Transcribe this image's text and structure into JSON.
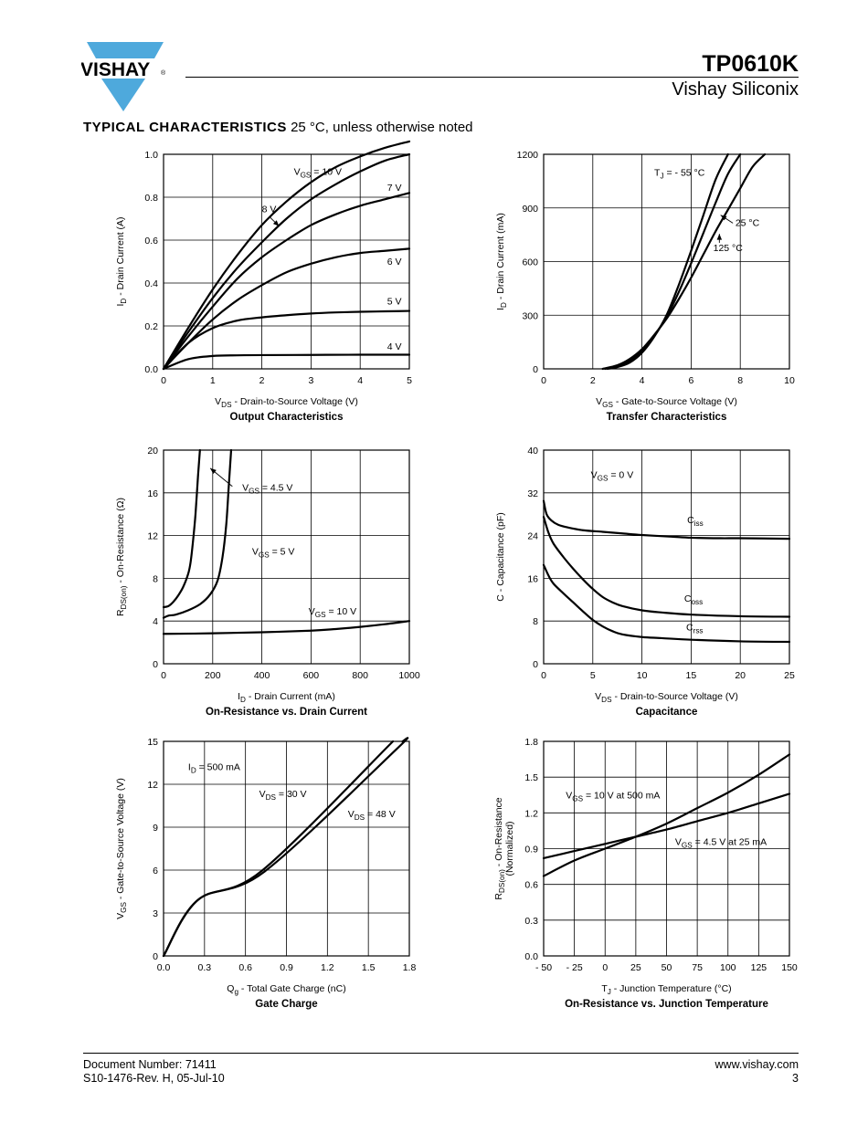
{
  "header": {
    "brand": "VISHAY",
    "registered": "®",
    "part_number": "TP0610K",
    "company": "Vishay Siliconix",
    "brand_color": "#4ea9dc"
  },
  "section": {
    "title": "TYPICAL CHARACTERISTICS",
    "condition": "25 °C, unless otherwise noted"
  },
  "chart_data": [
    {
      "type": "line",
      "title": "Output Characteristics",
      "xlabel": {
        "main": "V",
        "sub": "DS",
        "rest": " - Drain-to-Source Voltage (V)"
      },
      "ylabel": {
        "main": "I",
        "sub": "D",
        "rest": " - Drain Current (A)"
      },
      "xlim": [
        0,
        5
      ],
      "ylim": [
        0,
        1.0
      ],
      "xticks": [
        "0",
        "1",
        "2",
        "3",
        "4",
        "5"
      ],
      "yticks": [
        "0.0",
        "0.2",
        "0.4",
        "0.6",
        "0.8",
        "1.0"
      ],
      "grid": true,
      "series": [
        {
          "name": "VGS = 10 V",
          "x": [
            0,
            0.5,
            1,
            1.5,
            2,
            2.5,
            3,
            3.5,
            4,
            4.5,
            5
          ],
          "y": [
            0,
            0.19,
            0.37,
            0.53,
            0.67,
            0.78,
            0.87,
            0.94,
            0.99,
            1.03,
            1.06
          ]
        },
        {
          "name": "8 V",
          "x": [
            0,
            0.5,
            1,
            1.5,
            2,
            2.5,
            3,
            3.5,
            4,
            4.5,
            5
          ],
          "y": [
            0,
            0.17,
            0.33,
            0.47,
            0.59,
            0.7,
            0.79,
            0.86,
            0.92,
            0.97,
            1.0
          ]
        },
        {
          "name": "7 V",
          "x": [
            0,
            0.5,
            1,
            1.5,
            2,
            2.5,
            3,
            3.5,
            4,
            4.5,
            5
          ],
          "y": [
            0,
            0.15,
            0.29,
            0.42,
            0.52,
            0.6,
            0.67,
            0.72,
            0.76,
            0.79,
            0.82
          ]
        },
        {
          "name": "6 V",
          "x": [
            0,
            0.5,
            1,
            1.5,
            2,
            2.5,
            3,
            3.5,
            4,
            4.5,
            5
          ],
          "y": [
            0,
            0.12,
            0.23,
            0.32,
            0.39,
            0.45,
            0.49,
            0.52,
            0.54,
            0.55,
            0.56
          ]
        },
        {
          "name": "5 V",
          "x": [
            0,
            0.5,
            1,
            1.5,
            2,
            2.5,
            3,
            3.5,
            4,
            4.5,
            5
          ],
          "y": [
            0,
            0.12,
            0.19,
            0.225,
            0.24,
            0.25,
            0.258,
            0.263,
            0.266,
            0.268,
            0.27
          ]
        },
        {
          "name": "4 V",
          "x": [
            0,
            0.5,
            1,
            1.5,
            2,
            3,
            4,
            5
          ],
          "y": [
            0,
            0.045,
            0.06,
            0.063,
            0.064,
            0.065,
            0.066,
            0.066
          ]
        }
      ],
      "annotations": [
        {
          "type": "label",
          "sym": "V",
          "sub": "GS",
          "rest": " = 10 V",
          "x": 2.65,
          "y": 0.905
        },
        {
          "type": "label",
          "text": "8 V",
          "x": 2.0,
          "y": 0.73
        },
        {
          "type": "label",
          "text": "7 V",
          "x": 4.55,
          "y": 0.83
        },
        {
          "type": "label",
          "text": "6 V",
          "x": 4.55,
          "y": 0.485
        },
        {
          "type": "label",
          "text": "5 V",
          "x": 4.55,
          "y": 0.3
        },
        {
          "type": "label",
          "text": "4 V",
          "x": 4.55,
          "y": 0.09
        },
        {
          "type": "arrow",
          "from": [
            2.15,
            0.71
          ],
          "to": [
            2.35,
            0.665
          ]
        }
      ]
    },
    {
      "type": "line",
      "title": "Transfer Characteristics",
      "xlabel": {
        "main": "V",
        "sub": "GS",
        "rest": "  - Gate-to-Source Voltage (V)"
      },
      "ylabel": {
        "main": "I",
        "sub": "D",
        "rest": " - Drain Current (mA)"
      },
      "xlim": [
        0,
        10
      ],
      "ylim": [
        0,
        1200
      ],
      "xticks": [
        "0",
        "2",
        "4",
        "6",
        "8",
        "10"
      ],
      "yticks": [
        "0",
        "300",
        "600",
        "900",
        "1200"
      ],
      "grid": true,
      "series": [
        {
          "name": "TJ = -55 °C",
          "x": [
            2.6,
            3,
            3.5,
            4,
            4.5,
            5,
            5.5,
            6,
            6.5,
            7,
            7.5
          ],
          "y": [
            0,
            10,
            35,
            90,
            180,
            300,
            470,
            660,
            860,
            1060,
            1200
          ]
        },
        {
          "name": "25 °C",
          "x": [
            2.5,
            3,
            3.5,
            4,
            4.5,
            5,
            5.5,
            6,
            6.5,
            7,
            7.5,
            8
          ],
          "y": [
            0,
            15,
            45,
            100,
            185,
            290,
            430,
            590,
            760,
            930,
            1090,
            1200
          ]
        },
        {
          "name": "125 °C",
          "x": [
            2.4,
            3,
            3.5,
            4,
            4.5,
            5,
            5.5,
            6,
            6.5,
            7,
            7.5,
            8,
            8.5,
            9
          ],
          "y": [
            0,
            20,
            55,
            110,
            190,
            280,
            390,
            510,
            640,
            770,
            890,
            1010,
            1130,
            1200
          ]
        }
      ],
      "annotations": [
        {
          "type": "label",
          "sym": "T",
          "sub": "J",
          "rest": " = - 55 °C",
          "x": 4.5,
          "y": 1080
        },
        {
          "type": "label",
          "text": "25 °C",
          "x": 7.8,
          "y": 800
        },
        {
          "type": "label",
          "text": "125 °C",
          "x": 6.9,
          "y": 660
        },
        {
          "type": "arrow",
          "from": [
            7.7,
            815
          ],
          "to": [
            7.2,
            860
          ]
        },
        {
          "type": "arrow",
          "from": [
            7.15,
            705
          ],
          "to": [
            7.15,
            755
          ]
        }
      ]
    },
    {
      "type": "line",
      "title": "On-Resistance vs. Drain Current",
      "xlabel": {
        "main": "I",
        "sub": "D",
        "rest": "  - Drain Current (mA)"
      },
      "ylabel": {
        "main": "R",
        "sub": "DS(on)",
        "rest": " - On-Resistance (Ω)"
      },
      "xlim": [
        0,
        1000
      ],
      "ylim": [
        0,
        20
      ],
      "xticks": [
        "0",
        "200",
        "400",
        "600",
        "800",
        "1000"
      ],
      "yticks": [
        "0",
        "4",
        "8",
        "12",
        "16",
        "20"
      ],
      "grid": true,
      "series": [
        {
          "name": "VGS = 4.5 V",
          "x": [
            0,
            20,
            40,
            60,
            80,
            100,
            110,
            120,
            130,
            140,
            148
          ],
          "y": [
            5.3,
            5.4,
            5.8,
            6.4,
            7.2,
            8.4,
            9.5,
            11.5,
            14,
            17.5,
            20
          ]
        },
        {
          "name": "VGS = 5 V",
          "x": [
            0,
            20,
            50,
            100,
            150,
            190,
            220,
            240,
            255,
            265,
            275
          ],
          "y": [
            4.3,
            4.5,
            4.6,
            5.0,
            5.6,
            6.5,
            7.8,
            10,
            13,
            16.5,
            20
          ]
        },
        {
          "name": "VGS = 10 V",
          "x": [
            0,
            200,
            400,
            600,
            700,
            800,
            900,
            1000
          ],
          "y": [
            2.8,
            2.85,
            2.95,
            3.1,
            3.25,
            3.45,
            3.7,
            4.0
          ]
        }
      ],
      "annotations": [
        {
          "type": "label",
          "sym": "V",
          "sub": "GS",
          "rest": " = 4.5 V",
          "x": 320,
          "y": 16.2
        },
        {
          "type": "label",
          "sym": "V",
          "sub": "GS",
          "rest": " = 5 V",
          "x": 360,
          "y": 10.2
        },
        {
          "type": "label",
          "sym": "V",
          "sub": "GS",
          "rest": " = 10 V",
          "x": 590,
          "y": 4.6
        },
        {
          "type": "arrow",
          "from": [
            280,
            16.6
          ],
          "to": [
            190,
            18.3
          ]
        }
      ]
    },
    {
      "type": "line",
      "title": "Capacitance",
      "xlabel": {
        "main": "V",
        "sub": "DS",
        "rest": " - Drain-to-Source Voltage (V)"
      },
      "ylabel": {
        "main": "C",
        "sub": "",
        "rest": " - Capacitance (pF)"
      },
      "xlim": [
        0,
        25
      ],
      "ylim": [
        0,
        40
      ],
      "xticks": [
        "0",
        "5",
        "10",
        "15",
        "20",
        "25"
      ],
      "yticks": [
        "0",
        "8",
        "16",
        "24",
        "32",
        "40"
      ],
      "grid": true,
      "series": [
        {
          "name": "Ciss",
          "x": [
            0,
            0.3,
            0.8,
            1.5,
            2.5,
            4,
            6,
            8,
            10,
            13,
            15,
            18,
            20,
            25
          ],
          "y": [
            30.5,
            28,
            26.8,
            26,
            25.5,
            25,
            24.7,
            24.4,
            24.1,
            23.8,
            23.6,
            23.5,
            23.5,
            23.4
          ]
        },
        {
          "name": "Coss",
          "x": [
            0,
            0.5,
            1,
            2,
            3,
            4,
            5,
            6,
            7,
            8,
            10,
            12,
            15,
            20,
            25
          ],
          "y": [
            27.5,
            24.5,
            22.5,
            20,
            17.8,
            15.8,
            14,
            12.5,
            11.5,
            10.8,
            10,
            9.6,
            9.2,
            8.9,
            8.8
          ]
        },
        {
          "name": "Crss",
          "x": [
            0,
            0.5,
            1,
            2,
            3,
            4,
            5,
            6,
            7,
            8,
            10,
            12,
            15,
            20,
            25
          ],
          "y": [
            18.5,
            16.5,
            15,
            13.2,
            11.5,
            9.8,
            8.2,
            7,
            6.1,
            5.5,
            5.0,
            4.8,
            4.5,
            4.2,
            4.1
          ]
        }
      ],
      "annotations": [
        {
          "type": "label",
          "sym": "V",
          "sub": "GS",
          "rest": " = 0 V",
          "x": 4.8,
          "y": 34.8
        },
        {
          "type": "label",
          "sym": "C",
          "sub": "iss",
          "rest": "",
          "x": 14.6,
          "y": 26.3
        },
        {
          "type": "label",
          "sym": "C",
          "sub": "oss",
          "rest": "",
          "x": 14.3,
          "y": 11.6
        },
        {
          "type": "label",
          "sym": "C",
          "sub": "rss",
          "rest": "",
          "x": 14.5,
          "y": 6.2
        }
      ]
    },
    {
      "type": "line",
      "title": "Gate Charge",
      "xlabel": {
        "main": "Q",
        "sub": "g",
        "rest": " - Total Gate Charge (nC)"
      },
      "ylabel": {
        "main": "V",
        "sub": "GS",
        "rest": " - Gate-to-Source Voltage (V)"
      },
      "xlim": [
        0,
        1.8
      ],
      "ylim": [
        0,
        15
      ],
      "xticks": [
        "0.0",
        "0.3",
        "0.6",
        "0.9",
        "1.2",
        "1.5",
        "1.8"
      ],
      "yticks": [
        "0",
        "3",
        "6",
        "9",
        "12",
        "15"
      ],
      "grid": true,
      "series": [
        {
          "name": "VDS = 30 V",
          "x": [
            0,
            0.25,
            0.72,
            1.68
          ],
          "y": [
            0,
            3.9,
            5.95,
            15
          ]
        },
        {
          "name": "VDS = 48 V",
          "x": [
            0,
            0.25,
            0.74,
            1.7,
            1.75
          ],
          "y": [
            0,
            3.9,
            5.9,
            14.4,
            15
          ]
        }
      ],
      "annotations": [
        {
          "type": "label",
          "sym": "I",
          "sub": "D",
          "rest": " = 500 mA",
          "x": 0.18,
          "y": 13.0
        },
        {
          "type": "label",
          "sym": "V",
          "sub": "DS",
          "rest": " = 30 V",
          "x": 0.7,
          "y": 11.1
        },
        {
          "type": "label",
          "sym": "V",
          "sub": "DS",
          "rest": " = 48 V",
          "x": 1.35,
          "y": 9.7
        }
      ]
    },
    {
      "type": "line",
      "title": "On-Resistance vs. Junction Temperature",
      "xlabel": {
        "main": "T",
        "sub": "J",
        "rest": "  - Junction Temperature (°C)"
      },
      "ylabel": {
        "main": "R",
        "sub": "DS(on)",
        "rest": " - On-Resistance",
        "line2": "(Normalized)"
      },
      "xlim": [
        -50,
        150
      ],
      "ylim": [
        0.0,
        1.8
      ],
      "xticks": [
        "- 50",
        "- 25",
        "0",
        "25",
        "50",
        "75",
        "100",
        "125",
        "150"
      ],
      "yticks": [
        "0.0",
        "0.3",
        "0.6",
        "0.9",
        "1.2",
        "1.5",
        "1.8"
      ],
      "grid": true,
      "series": [
        {
          "name": "VGS = 10 V at 500 mA",
          "x": [
            -50,
            -25,
            0,
            25,
            50,
            75,
            100,
            125,
            150
          ],
          "y": [
            0.67,
            0.8,
            0.9,
            1.0,
            1.11,
            1.24,
            1.37,
            1.52,
            1.69
          ]
        },
        {
          "name": "VGS = 4.5 V at 25 mA",
          "x": [
            -50,
            -25,
            0,
            25,
            50,
            75,
            100,
            125,
            150
          ],
          "y": [
            0.82,
            0.88,
            0.94,
            1.0,
            1.06,
            1.13,
            1.2,
            1.28,
            1.36
          ]
        }
      ],
      "annotations": [
        {
          "type": "label",
          "sym": "V",
          "sub": "GS",
          "rest": " = 10 V at 500 mA",
          "x": -32,
          "y": 1.32
        },
        {
          "type": "label",
          "sym": "V",
          "sub": "GS",
          "rest": " = 4.5 V at 25 mA",
          "x": 57,
          "y": 0.93
        }
      ]
    }
  ],
  "footer": {
    "doc_number": "Document Number: 71411",
    "revision": "S10-1476-Rev. H, 05-Jul-10",
    "website": "www.vishay.com",
    "page": "3"
  }
}
